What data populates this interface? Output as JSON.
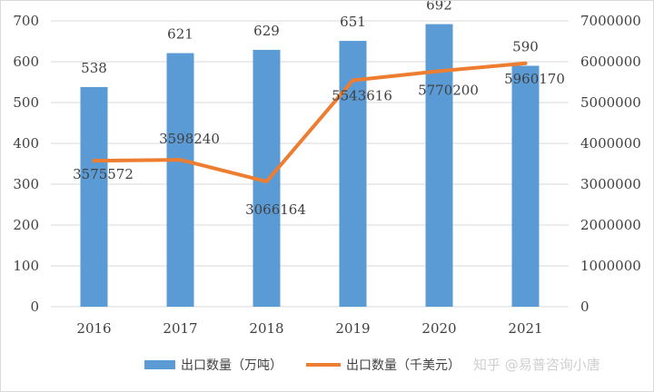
{
  "chart_data": {
    "type": "bar",
    "categories": [
      "2016",
      "2017",
      "2018",
      "2019",
      "2020",
      "2021"
    ],
    "series": [
      {
        "name": "出口数量（万吨）",
        "type": "bar",
        "axis": "left",
        "values": [
          538,
          621,
          629,
          651,
          692,
          590
        ],
        "value_labels": [
          "538",
          "621",
          "629",
          "651",
          "692",
          "590"
        ]
      },
      {
        "name": "出口数量（千美元）",
        "type": "line",
        "axis": "right",
        "values": [
          3575572,
          3598240,
          3066164,
          5543616,
          5770200,
          5960170
        ],
        "value_labels": [
          "3575572",
          "3598240",
          "3066164",
          "5543616",
          "5770200",
          "5960170"
        ]
      }
    ],
    "y_left": {
      "range": [
        0,
        700
      ],
      "ticks": [
        "0",
        "100",
        "200",
        "300",
        "400",
        "500",
        "600",
        "700"
      ]
    },
    "y_right": {
      "range": [
        0,
        7000000
      ],
      "ticks": [
        "0",
        "1000000",
        "2000000",
        "3000000",
        "4000000",
        "5000000",
        "6000000",
        "7000000"
      ]
    },
    "title": "",
    "xlabel": "",
    "ylabel": "",
    "grid": true,
    "legend_position": "bottom",
    "colors": {
      "bar": "#5b9bd5",
      "line": "#ed7d31",
      "grid": "#d9d9d9",
      "text": "#404040"
    }
  },
  "legend": {
    "bar_label": "出口数量（万吨）",
    "line_label": "出口数量（千美元）"
  },
  "watermark": "知乎 @易普咨询小唐"
}
